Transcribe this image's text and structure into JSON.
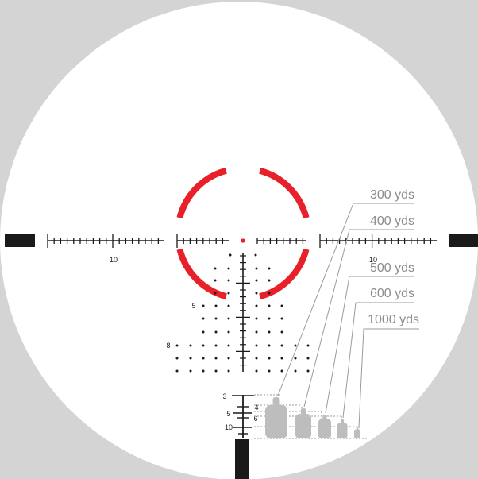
{
  "colors": {
    "background": "#d4d4d4",
    "lens": "#ffffff",
    "reticle": "#1a1a1a",
    "red_accent": "#e8202a",
    "target_grey": "#bdbdbd",
    "range_text": "#8c8c8c"
  },
  "horizontal_scale": {
    "left_label": "10",
    "right_label": "10"
  },
  "holdover_labels": [
    {
      "label": "5"
    },
    {
      "label": "8"
    }
  ],
  "rangefinder": {
    "left_labels": [
      "3",
      "5",
      "10"
    ],
    "right_labels": [
      "4",
      "6"
    ]
  },
  "range_callouts": [
    {
      "label": "300 yds"
    },
    {
      "label": "400 yds"
    },
    {
      "label": "500 yds"
    },
    {
      "label": "600 yds"
    },
    {
      "label": "1000 yds"
    }
  ],
  "icons": {
    "center": "center-dot-icon",
    "ring": "red-ring-icon",
    "target": "silhouette-target-icon"
  }
}
